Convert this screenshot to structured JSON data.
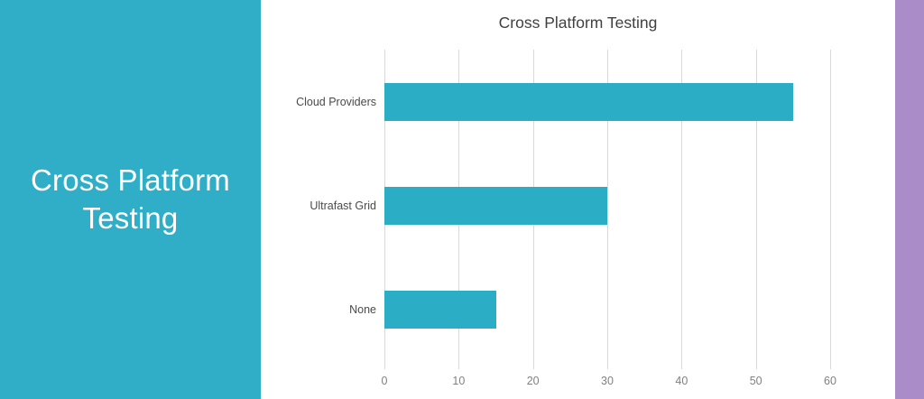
{
  "slide": {
    "panel_title_lines": [
      "Cross Platform",
      "Testing"
    ],
    "panel_color": "#30AEC7",
    "accent_strip_color": "#A98CC8"
  },
  "chart_data": {
    "type": "bar",
    "orientation": "horizontal",
    "title": "Cross Platform Testing",
    "categories": [
      "Cloud Providers",
      "Ultrafast Grid",
      "None"
    ],
    "values": [
      55,
      30,
      15
    ],
    "xlabel": "",
    "ylabel": "",
    "xlim": [
      0,
      60
    ],
    "xticks": [
      0,
      10,
      20,
      30,
      40,
      50,
      60
    ],
    "grid": "vertical-gridlines",
    "legend": "none",
    "bar_color": "#2BAEC5",
    "gridline_color": "#D9D9D9",
    "tick_label_color": "#808080",
    "category_label_color": "#4A4A4A",
    "title_color": "#404040"
  }
}
